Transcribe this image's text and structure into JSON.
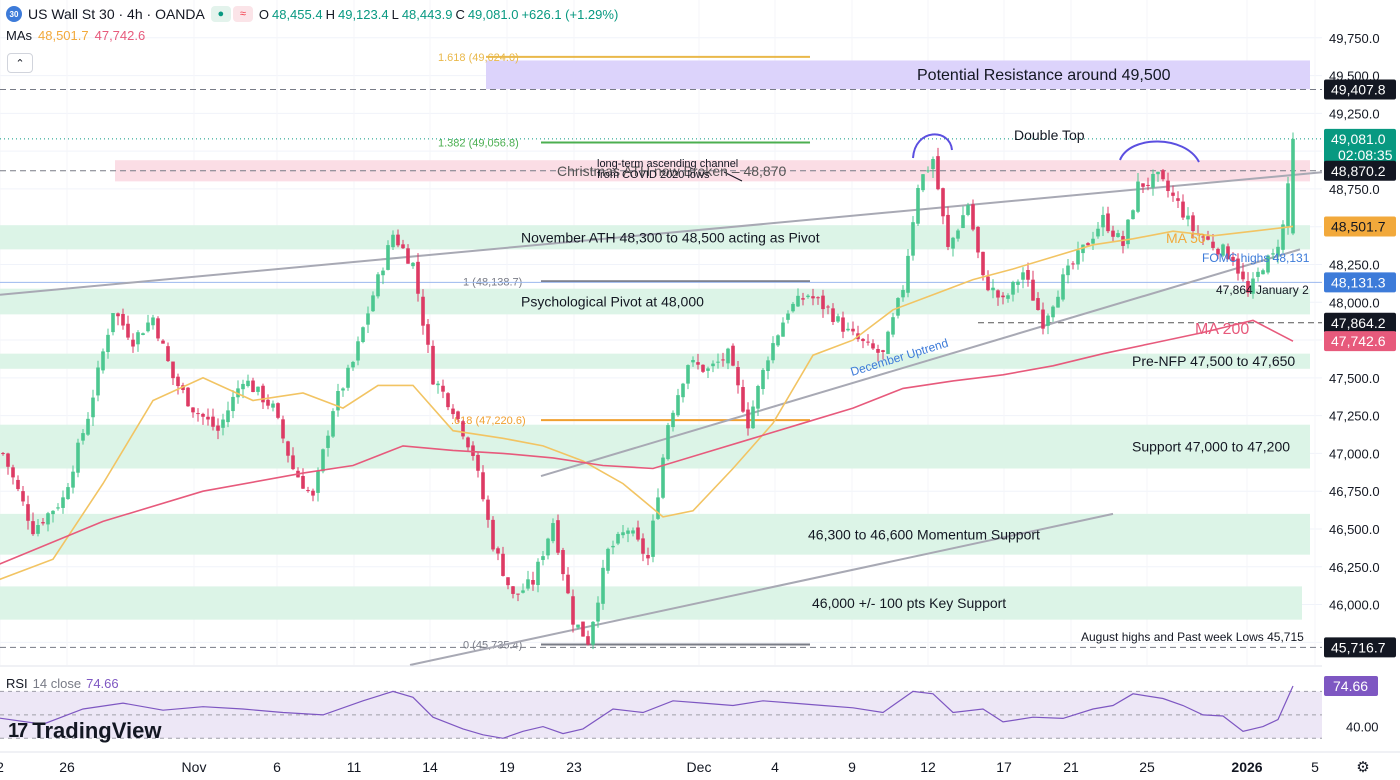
{
  "header": {
    "symbol_badge": "30",
    "title": "US Wall St 30 · 4h · OANDA",
    "open_label": "O",
    "open": "48,455.4",
    "high_label": "H",
    "high": "49,123.4",
    "low_label": "L",
    "low": "48,443.9",
    "close_label": "C",
    "close": "49,081.0",
    "change": "+626.1 (+1.29%)"
  },
  "mas": {
    "label": "MAs",
    "ma50_value": "48,501.7",
    "ma200_value": "47,742.6"
  },
  "collapse_glyph": "⌃",
  "rsi": {
    "label": "RSI",
    "params": "14 close",
    "value": "74.66"
  },
  "logo": {
    "mark": "17",
    "text": "TradingView"
  },
  "colors": {
    "up": "#089981",
    "down": "#f23645",
    "candle_up": "#4cc790",
    "candle_down": "#dd3a64",
    "ma50": "#f2c463",
    "ma200": "#e75a7c",
    "resistance_zone": "#dcd3fb",
    "pivot_zone": "#dcf4e7",
    "ath_zone": "#fbdde5",
    "rsi_line": "#7e57c2"
  },
  "chart_data": [
    {
      "type": "candlestick",
      "symbol": "US Wall St 30",
      "timeframe": "4h",
      "ylim": [
        45600,
        50000
      ],
      "y_ticks": [
        "45,750.0",
        "46,000.0",
        "46,250.0",
        "46,500.0",
        "46,750.0",
        "47,000.0",
        "47,250.0",
        "47,500.0",
        "47,750.0",
        "48,000.0",
        "48,250.0",
        "48,500.0",
        "48,750.0",
        "49,000.0",
        "49,250.0",
        "49,500.0",
        "49,750.0"
      ],
      "x_ticks": [
        "2",
        "26",
        "Nov",
        "6",
        "11",
        "14",
        "19",
        "23",
        "Dec",
        "4",
        "9",
        "12",
        "17",
        "21",
        "25",
        "2026",
        "5"
      ],
      "anchors": [
        [
          0,
          47000
        ],
        [
          6,
          46500
        ],
        [
          12,
          46700
        ],
        [
          17,
          47250
        ],
        [
          22,
          47950
        ],
        [
          26,
          47750
        ],
        [
          30,
          47900
        ],
        [
          34,
          47500
        ],
        [
          38,
          47300
        ],
        [
          43,
          47150
        ],
        [
          48,
          47500
        ],
        [
          54,
          47300
        ],
        [
          58,
          46900
        ],
        [
          62,
          46700
        ],
        [
          66,
          47300
        ],
        [
          70,
          47600
        ],
        [
          74,
          48050
        ],
        [
          78,
          48450
        ],
        [
          82,
          48250
        ],
        [
          86,
          47500
        ],
        [
          90,
          47300
        ],
        [
          94,
          47000
        ],
        [
          98,
          46400
        ],
        [
          102,
          46050
        ],
        [
          106,
          46150
        ],
        [
          110,
          46550
        ],
        [
          114,
          45900
        ],
        [
          117,
          45760
        ],
        [
          121,
          46350
        ],
        [
          125,
          46500
        ],
        [
          129,
          46300
        ],
        [
          133,
          47200
        ],
        [
          137,
          47600
        ],
        [
          141,
          47550
        ],
        [
          145,
          47650
        ],
        [
          149,
          47200
        ],
        [
          153,
          47650
        ],
        [
          157,
          47950
        ],
        [
          161,
          48050
        ],
        [
          165,
          47950
        ],
        [
          169,
          47800
        ],
        [
          173,
          47700
        ],
        [
          176,
          47650
        ],
        [
          180,
          48100
        ],
        [
          183,
          48780
        ],
        [
          186,
          48950
        ],
        [
          189,
          48350
        ],
        [
          193,
          48650
        ],
        [
          196,
          48150
        ],
        [
          200,
          48000
        ],
        [
          204,
          48200
        ],
        [
          208,
          47870
        ],
        [
          212,
          48150
        ],
        [
          216,
          48350
        ],
        [
          220,
          48550
        ],
        [
          224,
          48380
        ],
        [
          227,
          48770
        ],
        [
          231,
          48820
        ],
        [
          235,
          48650
        ],
        [
          238,
          48480
        ],
        [
          242,
          48380
        ],
        [
          246,
          48300
        ],
        [
          249,
          48050
        ],
        [
          252,
          48250
        ],
        [
          254,
          48300
        ],
        [
          256,
          48500
        ],
        [
          257,
          48780
        ],
        [
          258,
          49081
        ]
      ],
      "ma50": [
        [
          -2,
          46150
        ],
        [
          10,
          46300
        ],
        [
          20,
          46800
        ],
        [
          30,
          47350
        ],
        [
          40,
          47500
        ],
        [
          50,
          47350
        ],
        [
          60,
          47400
        ],
        [
          68,
          47300
        ],
        [
          75,
          47450
        ],
        [
          82,
          47450
        ],
        [
          90,
          47150
        ],
        [
          100,
          47100
        ],
        [
          108,
          47050
        ],
        [
          116,
          46950
        ],
        [
          124,
          46800
        ],
        [
          132,
          46580
        ],
        [
          138,
          46620
        ],
        [
          146,
          46900
        ],
        [
          154,
          47200
        ],
        [
          162,
          47650
        ],
        [
          170,
          47750
        ],
        [
          178,
          47950
        ],
        [
          186,
          48050
        ],
        [
          194,
          48150
        ],
        [
          202,
          48220
        ],
        [
          210,
          48300
        ],
        [
          218,
          48380
        ],
        [
          226,
          48420
        ],
        [
          234,
          48470
        ],
        [
          242,
          48440
        ],
        [
          250,
          48470
        ],
        [
          258,
          48501.7
        ]
      ],
      "ma200": [
        [
          -2,
          46250
        ],
        [
          20,
          46550
        ],
        [
          40,
          46750
        ],
        [
          60,
          46870
        ],
        [
          70,
          46920
        ],
        [
          80,
          47050
        ],
        [
          90,
          47020
        ],
        [
          100,
          47000
        ],
        [
          110,
          46970
        ],
        [
          120,
          46920
        ],
        [
          130,
          46900
        ],
        [
          140,
          47000
        ],
        [
          150,
          47100
        ],
        [
          160,
          47200
        ],
        [
          170,
          47300
        ],
        [
          180,
          47430
        ],
        [
          190,
          47480
        ],
        [
          200,
          47520
        ],
        [
          210,
          47580
        ],
        [
          220,
          47660
        ],
        [
          230,
          47730
        ],
        [
          240,
          47800
        ],
        [
          250,
          47880
        ],
        [
          258,
          47742.6
        ]
      ],
      "rsi": [
        [
          -2,
          48
        ],
        [
          8,
          42
        ],
        [
          16,
          55
        ],
        [
          24,
          60
        ],
        [
          32,
          54
        ],
        [
          40,
          57
        ],
        [
          48,
          55
        ],
        [
          56,
          52
        ],
        [
          64,
          50
        ],
        [
          72,
          62
        ],
        [
          78,
          70
        ],
        [
          82,
          65
        ],
        [
          86,
          48
        ],
        [
          92,
          38
        ],
        [
          96,
          33
        ],
        [
          100,
          30
        ],
        [
          104,
          36
        ],
        [
          108,
          40
        ],
        [
          112,
          34
        ],
        [
          116,
          38
        ],
        [
          122,
          55
        ],
        [
          128,
          52
        ],
        [
          134,
          62
        ],
        [
          140,
          60
        ],
        [
          146,
          58
        ],
        [
          152,
          62
        ],
        [
          158,
          60
        ],
        [
          164,
          58
        ],
        [
          170,
          56
        ],
        [
          176,
          52
        ],
        [
          182,
          70
        ],
        [
          186,
          68
        ],
        [
          190,
          52
        ],
        [
          196,
          55
        ],
        [
          200,
          44
        ],
        [
          206,
          48
        ],
        [
          212,
          47
        ],
        [
          218,
          55
        ],
        [
          222,
          58
        ],
        [
          226,
          68
        ],
        [
          232,
          64
        ],
        [
          236,
          58
        ],
        [
          240,
          50
        ],
        [
          244,
          49
        ],
        [
          248,
          36
        ],
        [
          252,
          40
        ],
        [
          255,
          46
        ],
        [
          258,
          74.66
        ]
      ],
      "zones": [
        {
          "label": "Potential Resistance around 49,500",
          "from": 49410,
          "to": 49600,
          "color": "#dcd3fb"
        },
        {
          "label": "Christmas ATH now Broken – 48,870",
          "from": 48800,
          "to": 48940,
          "color": "#fbdde5"
        },
        {
          "label": "November ATH 48,300 to 48,500 acting as Pivot",
          "from": 48350,
          "to": 48510,
          "color": "#dcf4e7"
        },
        {
          "label": "Psychological Pivot at 48,000",
          "from": 47920,
          "to": 48090,
          "color": "#dcf4e7"
        },
        {
          "label": "Pre-NFP 47,500 to 47,650",
          "from": 47560,
          "to": 47660,
          "color": "#dcf4e7"
        },
        {
          "label": "Support 47,000 to 47,200",
          "from": 46900,
          "to": 47190,
          "color": "#dcf4e7"
        },
        {
          "label": "46,300 to 46,600 Momentum Support",
          "from": 46330,
          "to": 46600,
          "color": "#dcf4e7"
        },
        {
          "label": "46,000 +/- 100 pts Key Support",
          "from": 45900,
          "to": 46120,
          "color": "#dcf4e7"
        }
      ],
      "fib_levels": [
        {
          "label": "1.618 (49,624.0)",
          "value": 49624.0
        },
        {
          "label": "1.382 (49,056.8)",
          "value": 49056.8
        },
        {
          "label": "1 (48,138.7)",
          "value": 48138.7
        },
        {
          "label": ".618 (47,220.6)",
          "value": 47220.6
        },
        {
          "label": "0 (45,735.4)",
          "value": 45735.4
        }
      ],
      "annotations": [
        {
          "label": "long-term ascending channel from COVID 2020 lows",
          "line1": "long-term ascending channel",
          "line2": "from COVID 2020 lows"
        },
        {
          "label": "Double Top"
        },
        {
          "label": "MA 50"
        },
        {
          "label": "MA 200"
        },
        {
          "label": "FOMC highs 48,131",
          "value": 48131
        },
        {
          "label": "47,864 January 2",
          "value": 47864
        },
        {
          "label": "December Uptrend"
        },
        {
          "label": "August highs and Past week Lows 45,715",
          "value": 45715
        }
      ],
      "price_labels": [
        {
          "text": "49,407.8",
          "value": 49407.8,
          "color": "#131722"
        },
        {
          "text": "49,081.0",
          "value": 49081.0,
          "color": "#089981",
          "countdown": "02:08:35"
        },
        {
          "text": "48,870.2",
          "value": 48870.2,
          "color": "#131722"
        },
        {
          "text": "48,501.7",
          "value": 48501.7,
          "color": "#f2a93b"
        },
        {
          "text": "48,131.3",
          "value": 48131.3,
          "color": "#3d7bd9"
        },
        {
          "text": "47,864.2",
          "value": 47864.2,
          "color": "#131722"
        },
        {
          "text": "47,742.6",
          "value": 47742.6,
          "color": "#e75a7c"
        },
        {
          "text": "45,716.7",
          "value": 45716.7,
          "color": "#131722"
        }
      ],
      "rsi_axis": {
        "ticks": [
          "40.00"
        ],
        "current": "74.66",
        "ylim": [
          20,
          90
        ],
        "band": [
          30,
          70
        ]
      }
    }
  ]
}
